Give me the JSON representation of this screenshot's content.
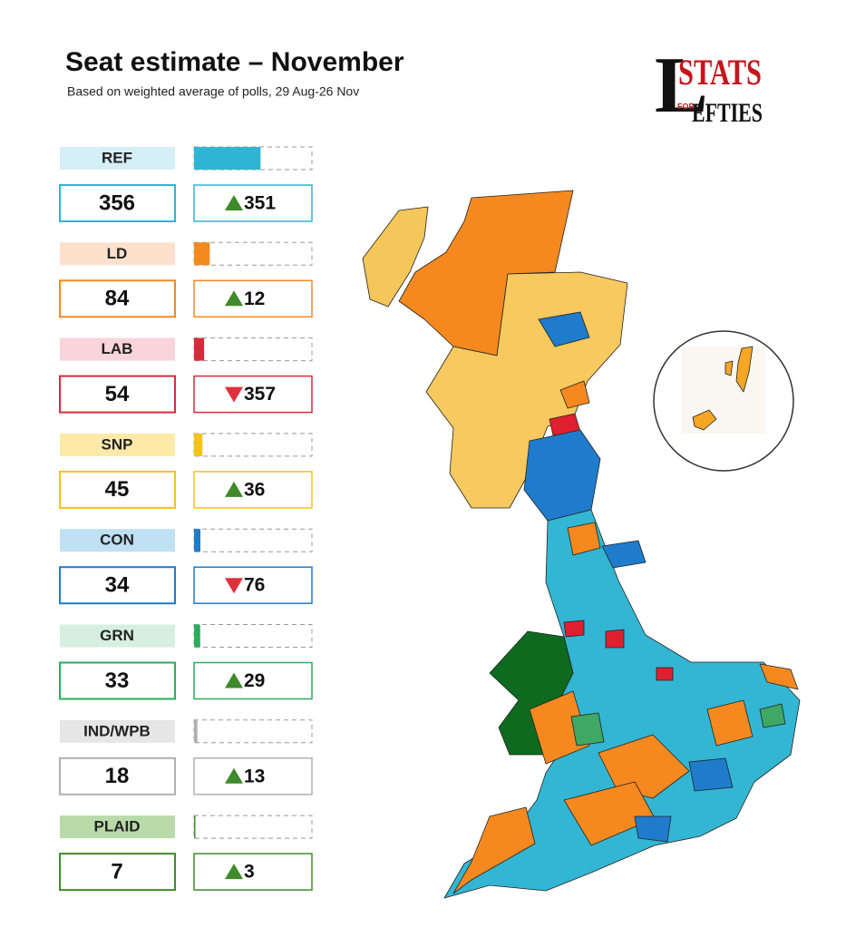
{
  "header": {
    "title": "Seat estimate – November",
    "subtitle": "Based on weighted average of polls, 29 Aug-26 Nov"
  },
  "logo": {
    "initial": "L",
    "top": "STATS",
    "small": "FOR",
    "bottom": "EFTIES"
  },
  "parties": [
    {
      "label": "REF",
      "seats": 356,
      "change": 351,
      "direction": "up",
      "color": "#2fb5d4",
      "light": "#d4eff6"
    },
    {
      "label": "LD",
      "seats": 84,
      "change": 12,
      "direction": "up",
      "color": "#f28a1e",
      "light": "#fde1cd"
    },
    {
      "label": "LAB",
      "seats": 54,
      "change": 357,
      "direction": "down",
      "color": "#d92b3d",
      "light": "#f9d4db"
    },
    {
      "label": "SNP",
      "seats": 45,
      "change": 36,
      "direction": "up",
      "color": "#f4c318",
      "light": "#fdeaa9"
    },
    {
      "label": "CON",
      "seats": 34,
      "change": 76,
      "direction": "down",
      "color": "#1f7bcc",
      "light": "#c0e0f4"
    },
    {
      "label": "GRN",
      "seats": 33,
      "change": 29,
      "direction": "up",
      "color": "#2aae5c",
      "light": "#d7efe0"
    },
    {
      "label": "IND/WPB",
      "seats": 18,
      "change": 13,
      "direction": "up",
      "color": "#b0b0b0",
      "light": "#e6e6e6"
    },
    {
      "label": "PLAID",
      "seats": 7,
      "change": 3,
      "direction": "up",
      "color": "#3f8b2c",
      "light": "#b9daa9"
    }
  ]
}
